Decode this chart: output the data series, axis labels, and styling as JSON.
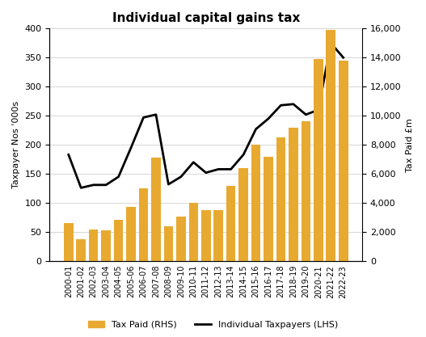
{
  "title": "Individual capital gains tax",
  "years": [
    "2000-01",
    "2001-02",
    "2002-03",
    "2003-04",
    "2004-05",
    "2005-06",
    "2006-07",
    "2007-08",
    "2008-09",
    "2009-10",
    "2010-11",
    "2011-12",
    "2012-13",
    "2013-14",
    "2014-15",
    "2015-16",
    "2016-17",
    "2017-18",
    "2018-19",
    "2019-20",
    "2020-21",
    "2021-22",
    "2022-23"
  ],
  "tax_paid_rhs_values": [
    2600,
    1500,
    2150,
    2100,
    2850,
    3700,
    5000,
    7100,
    2400,
    3050,
    4000,
    3500,
    3500,
    5200,
    6400,
    8000,
    7200,
    8500,
    9200,
    9600,
    13900,
    15900,
    13800
  ],
  "taxpayers_lhs": [
    183,
    126,
    131,
    131,
    145,
    195,
    247,
    252,
    132,
    145,
    170,
    152,
    158,
    158,
    183,
    227,
    245,
    268,
    270,
    252,
    260,
    375,
    350
  ],
  "bar_color": "#E8A930",
  "line_color": "#000000",
  "ylabel_left": "Taxpayer Nos '000s",
  "ylabel_right": "Tax Paid £m",
  "ylim_left": [
    0,
    400
  ],
  "ylim_right": [
    0,
    16000
  ],
  "yticks_left": [
    0,
    50,
    100,
    150,
    200,
    250,
    300,
    350,
    400
  ],
  "yticks_right": [
    0,
    2000,
    4000,
    6000,
    8000,
    10000,
    12000,
    14000,
    16000
  ],
  "legend_bar_label": "Tax Paid (RHS)",
  "legend_line_label": "Individual Taxpayers (LHS)",
  "background_color": "#ffffff",
  "grid_color": "#d0d0d0",
  "title_fontsize": 11,
  "axis_label_fontsize": 8,
  "tick_fontsize": 8,
  "legend_fontsize": 8
}
